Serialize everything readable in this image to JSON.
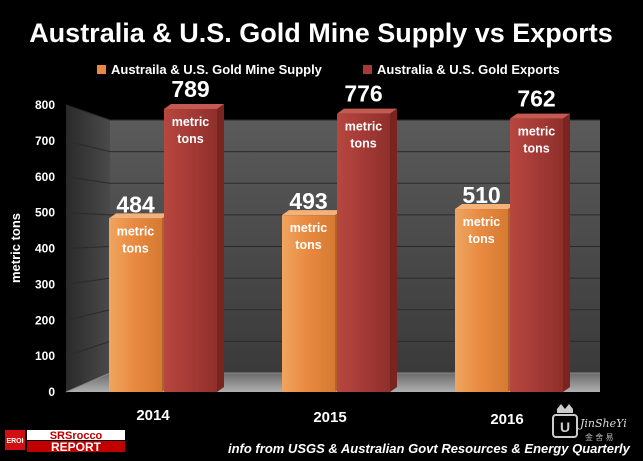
{
  "chart_data": {
    "type": "bar",
    "title": "Australia & U.S. Gold Mine Supply vs Exports",
    "xlabel": "",
    "ylabel": "metric tons",
    "ylim": [
      0,
      800
    ],
    "yticks": [
      0,
      100,
      200,
      300,
      400,
      500,
      600,
      700,
      800
    ],
    "categories": [
      "2014",
      "2015",
      "2016"
    ],
    "series": [
      {
        "name": "Austraila & U.S. Gold Mine Supply",
        "values": [
          484,
          493,
          510
        ],
        "color": "#e8893f",
        "unit": "metric tons"
      },
      {
        "name": "Australia & U.S. Gold Exports",
        "values": [
          789,
          776,
          762
        ],
        "color": "#a53a36",
        "unit": "metric tons"
      }
    ],
    "legend": "top",
    "grid": true
  },
  "footer": {
    "source": "info from USGS & Australian Govt Resources & Energy Quarterly",
    "brand_left_top": "SRSrocco",
    "brand_left_bottom": "REPORT",
    "brand_left_badge": "EROI",
    "brand_right": "JinSheYi",
    "brand_right_sub": "金 舍 易"
  }
}
